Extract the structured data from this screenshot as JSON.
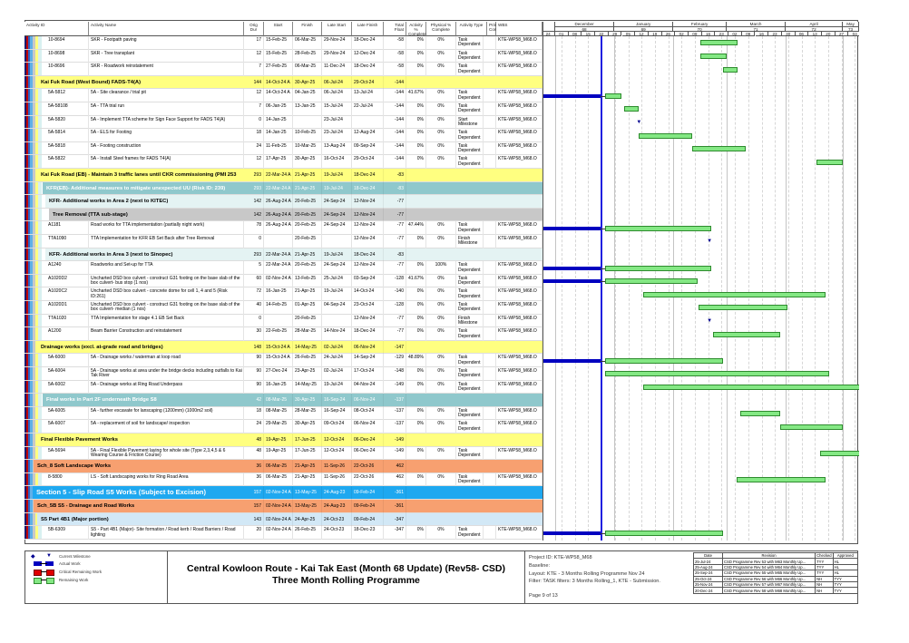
{
  "columns": {
    "id": "Activity ID",
    "name": "Activity Name",
    "orig_dur": "Orig Dur",
    "start": "Start",
    "finish": "Finish",
    "late_start": "Late Start",
    "late_finish": "Late Finish",
    "total_float": "Total Float",
    "act_pct": "Activity % Complete",
    "phys_pct": "Physical % Complete",
    "type": "Activity Type",
    "prim_constr": "Prima Const",
    "wbs": "WBS"
  },
  "timescale": {
    "months": [
      {
        "name": "December",
        "num": "68"
      },
      {
        "name": "January",
        "num": "69"
      },
      {
        "name": "February",
        "num": "70"
      },
      {
        "name": "March",
        "num": "71"
      },
      {
        "name": "April",
        "num": "72"
      },
      {
        "name": "May",
        "num": "73"
      }
    ],
    "weeks": [
      "24",
      "01",
      "08",
      "15",
      "22",
      "29",
      "05",
      "12",
      "19",
      "26",
      "02",
      "09",
      "16",
      "23",
      "02",
      "09",
      "16",
      "23",
      "30",
      "06",
      "13",
      "20",
      "27",
      "04"
    ]
  },
  "rows": [
    {
      "kind": "task",
      "id": "10-8694",
      "name": "SKR - Footpath paving",
      "dur": "17",
      "start": "15-Feb-25",
      "finish": "06-Mar-25",
      "ls": "29-Nov-24",
      "lf": "18-Dec-24",
      "tf": "-58",
      "pct": "0%",
      "phys": "0%",
      "type": "Task Dependent",
      "wbs": "KTE-WP58_M68.O"
    },
    {
      "kind": "task",
      "id": "10-8698",
      "name": "SKR - Tree transplant",
      "dur": "12",
      "start": "15-Feb-25",
      "finish": "28-Feb-25",
      "ls": "29-Nov-24",
      "lf": "12-Dec-24",
      "tf": "-58",
      "pct": "0%",
      "phys": "0%",
      "type": "Task Dependent",
      "wbs": "KTE-WP58_M68.O"
    },
    {
      "kind": "task",
      "id": "10-8696",
      "name": "SKR - Roadwork reinstatement",
      "dur": "7",
      "start": "27-Feb-25",
      "finish": "06-Mar-25",
      "ls": "11-Dec-24",
      "lf": "18-Dec-24",
      "tf": "-58",
      "pct": "0%",
      "phys": "0%",
      "type": "Task Dependent",
      "wbs": "KTE-WP58_M68.O"
    },
    {
      "kind": "group",
      "style": "yellow",
      "level": 3,
      "name": "Kai Fuk Road (West Bound) FADS-T4(A)",
      "dur": "144",
      "start": "14-Oct-24 A",
      "finish": "30-Apr-25",
      "ls": "06-Jul-24",
      "lf": "29-Oct-24",
      "tf": "-144"
    },
    {
      "kind": "task",
      "id": "5A-5812",
      "name": "5A - Site clearance / trial pit",
      "dur": "12",
      "start": "14-Oct-24 A",
      "finish": "04-Jan-25",
      "ls": "06-Jul-24",
      "lf": "13-Jul-24",
      "tf": "-144",
      "pct": "41.67%",
      "phys": "0%",
      "type": "Task Dependent",
      "wbs": "KTE-WP58_M68.O"
    },
    {
      "kind": "task",
      "id": "5A-58108",
      "name": "5A - TTA trial run",
      "dur": "7",
      "start": "06-Jan-25",
      "finish": "13-Jan-25",
      "ls": "15-Jul-24",
      "lf": "22-Jul-24",
      "tf": "-144",
      "pct": "0%",
      "phys": "0%",
      "type": "Task Dependent",
      "wbs": "KTE-WP58_M68.O"
    },
    {
      "kind": "task",
      "id": "5A-5820",
      "name": "5A - Implement TTA scheme for Sign Face Support for FADS T4(A)",
      "dur": "0",
      "start": "14-Jan-25",
      "finish": "",
      "ls": "23-Jul-24",
      "lf": "",
      "tf": "-144",
      "pct": "0%",
      "phys": "0%",
      "type": "Start Milestone",
      "wbs": "KTE-WP58_M68.O"
    },
    {
      "kind": "task",
      "id": "5A-5814",
      "name": "5A - ELS for Footing",
      "dur": "18",
      "start": "14-Jan-25",
      "finish": "10-Feb-25",
      "ls": "23-Jul-24",
      "lf": "12-Aug-24",
      "tf": "-144",
      "pct": "0%",
      "phys": "0%",
      "type": "Task Dependent",
      "wbs": "KTE-WP58_M68.O"
    },
    {
      "kind": "task",
      "id": "5A-5818",
      "name": "5A - Footing construction",
      "dur": "24",
      "start": "11-Feb-25",
      "finish": "10-Mar-25",
      "ls": "13-Aug-24",
      "lf": "09-Sep-24",
      "tf": "-144",
      "pct": "0%",
      "phys": "0%",
      "type": "Task Dependent",
      "wbs": "KTE-WP58_M68.O"
    },
    {
      "kind": "task",
      "id": "5A-5822",
      "name": "5A - Install Steel frames for FADS T4(A)",
      "dur": "12",
      "start": "17-Apr-25",
      "finish": "30-Apr-25",
      "ls": "16-Oct-24",
      "lf": "29-Oct-24",
      "tf": "-144",
      "pct": "0%",
      "phys": "0%",
      "type": "Task Dependent",
      "wbs": "KTE-WP58_M68.O"
    },
    {
      "kind": "group",
      "style": "yellow",
      "level": 3,
      "name": "Kai Fuk Road (EB) - Maintain 3 traffic lanes until CKR commissioning (PMI 253",
      "dur": "293",
      "start": "22-Mar-24 A",
      "finish": "21-Apr-25",
      "ls": "19-Jul-24",
      "lf": "18-Dec-24",
      "tf": "-83"
    },
    {
      "kind": "group",
      "style": "teal",
      "level": 4,
      "name": "KFR(EB)- Additional measures to mitigate unexpected UU (Risk ID: 239)",
      "dur": "293",
      "start": "22-Mar-24 A",
      "finish": "21-Apr-25",
      "ls": "19-Jul-24",
      "lf": "18-Dec-24",
      "tf": "-83"
    },
    {
      "kind": "group",
      "style": "cyan",
      "level": 5,
      "name": "KFR- Additional works in Area 2 (next to KITEC)",
      "dur": "142",
      "start": "26-Aug-24 A",
      "finish": "20-Feb-25",
      "ls": "24-Sep-24",
      "lf": "12-Nov-24",
      "tf": "-77"
    },
    {
      "kind": "group",
      "style": "gray",
      "level": 6,
      "name": "Tree Removal (TTA sub-stage)",
      "dur": "142",
      "start": "26-Aug-24 A",
      "finish": "20-Feb-25",
      "ls": "24-Sep-24",
      "lf": "12-Nov-24",
      "tf": "-77"
    },
    {
      "kind": "task",
      "id": "A1181",
      "name": "Road works for TTA implementation (partially night work)",
      "dur": "78",
      "start": "26-Aug-24 A",
      "finish": "20-Feb-25",
      "ls": "24-Sep-24",
      "lf": "12-Nov-24",
      "tf": "-77",
      "pct": "47.44%",
      "phys": "0%",
      "type": "Task Dependent",
      "wbs": "KTE-WP58_M68.O"
    },
    {
      "kind": "task",
      "id": "TTA1090",
      "name": "TTA Implementation for KFR EB Set Back after Tree Removal",
      "dur": "0",
      "start": "",
      "finish": "20-Feb-25",
      "ls": "",
      "lf": "12-Nov-24",
      "tf": "-77",
      "pct": "0%",
      "phys": "0%",
      "type": "Finish Milestone",
      "wbs": "KTE-WP58_M68.O"
    },
    {
      "kind": "group",
      "style": "cyan",
      "level": 5,
      "name": "KFR- Additional works in Area 3 (next to Sinopec)",
      "dur": "293",
      "start": "22-Mar-24 A",
      "finish": "21-Apr-25",
      "ls": "19-Jul-24",
      "lf": "18-Dec-24",
      "tf": "-83"
    },
    {
      "kind": "task",
      "id": "A1240",
      "name": "Roadworks and Set-up for TTA",
      "dur": "5",
      "start": "22-Mar-24 A",
      "finish": "20-Feb-25",
      "ls": "24-Sep-24",
      "lf": "12-Nov-24",
      "tf": "-77",
      "pct": "0%",
      "phys": "100%",
      "type": "Task Dependent",
      "wbs": "KTE-WP58_M68.O"
    },
    {
      "kind": "task",
      "id": "A1020D2",
      "name": "Uncharted DSD box culvert - construct G31 footing on the base slab of the box culvert- bus stop (1 nos)",
      "dur": "60",
      "start": "02-Nov-24 A",
      "finish": "13-Feb-25",
      "ls": "25-Jul-24",
      "lf": "03-Sep-24",
      "tf": "-128",
      "pct": "41.67%",
      "phys": "0%",
      "type": "Task Dependent",
      "wbs": "KTE-WP58_M68.O"
    },
    {
      "kind": "task",
      "id": "A1020C2",
      "name": "Uncharted DSD box culvert - concrete dome for cell 1, 4 and 5 (Risk ID:261)",
      "dur": "72",
      "start": "16-Jan-25",
      "finish": "21-Apr-25",
      "ls": "19-Jul-24",
      "lf": "14-Oct-24",
      "tf": "-140",
      "pct": "0%",
      "phys": "0%",
      "type": "Task Dependent",
      "wbs": "KTE-WP58_M68.O"
    },
    {
      "kind": "task",
      "id": "A1020D1",
      "name": "Uncharted DSD box culvert - construct G31 footing on the base slab of the box culvert- median (1 nos)",
      "dur": "40",
      "start": "14-Feb-25",
      "finish": "01-Apr-25",
      "ls": "04-Sep-24",
      "lf": "23-Oct-24",
      "tf": "-128",
      "pct": "0%",
      "phys": "0%",
      "type": "Task Dependent",
      "wbs": "KTE-WP58_M68.O"
    },
    {
      "kind": "task",
      "id": "TTA1020",
      "name": "TTA Implementation for stage 4.1 EB Set Back",
      "dur": "0",
      "start": "",
      "finish": "20-Feb-25",
      "ls": "",
      "lf": "12-Nov-24",
      "tf": "-77",
      "pct": "0%",
      "phys": "0%",
      "type": "Finish Milestone",
      "wbs": "KTE-WP58_M68.O"
    },
    {
      "kind": "task",
      "id": "A1200",
      "name": "Beam Barrier Construction and reinstatement",
      "dur": "30",
      "start": "22-Feb-25",
      "finish": "28-Mar-25",
      "ls": "14-Nov-24",
      "lf": "18-Dec-24",
      "tf": "-77",
      "pct": "0%",
      "phys": "0%",
      "type": "Task Dependent",
      "wbs": "KTE-WP58_M68.O"
    },
    {
      "kind": "group",
      "style": "yellow",
      "level": 3,
      "name": "Drainage works (excl. at-grade road and bridges)",
      "dur": "148",
      "start": "15-Oct-24 A",
      "finish": "14-May-25",
      "ls": "02-Jul-24",
      "lf": "06-Nov-24",
      "tf": "-147"
    },
    {
      "kind": "task",
      "id": "5A-6000",
      "name": "5A - Drainage works / waterman at loop road",
      "dur": "90",
      "start": "15-Oct-24 A",
      "finish": "26-Feb-25",
      "ls": "24-Jul-24",
      "lf": "14-Sep-24",
      "tf": "-129",
      "pct": "48.89%",
      "phys": "0%",
      "type": "Task Dependent",
      "wbs": "KTE-WP58_M68.O"
    },
    {
      "kind": "task",
      "id": "5A-6004",
      "name": "5A - Drainage works at area under the bridge decks including outfalls to Kai Tak River",
      "dur": "90",
      "start": "27-Dec-24",
      "finish": "23-Apr-25",
      "ls": "02-Jul-24",
      "lf": "17-Oct-24",
      "tf": "-148",
      "pct": "0%",
      "phys": "0%",
      "type": "Task Dependent",
      "wbs": "KTE-WP58_M68.O"
    },
    {
      "kind": "task",
      "id": "5A-6002",
      "name": "5A - Drainage works at Ring Road Underpass",
      "dur": "90",
      "start": "16-Jan-25",
      "finish": "14-May-25",
      "ls": "19-Jul-24",
      "lf": "04-Nov-24",
      "tf": "-149",
      "pct": "0%",
      "phys": "0%",
      "type": "Task Dependent",
      "wbs": "KTE-WP58_M68.O"
    },
    {
      "kind": "group",
      "style": "teal",
      "level": 4,
      "name": "Final works in Part 2F underneath Bridge S8",
      "dur": "42",
      "start": "08-Mar-25",
      "finish": "30-Apr-25",
      "ls": "16-Sep-24",
      "lf": "06-Nov-24",
      "tf": "-137"
    },
    {
      "kind": "task",
      "id": "5A-6005",
      "name": "5A - further excavate for lanscaping (1200mm)  (1000m2 soil)",
      "dur": "18",
      "start": "08-Mar-25",
      "finish": "28-Mar-25",
      "ls": "16-Sep-24",
      "lf": "08-Oct-24",
      "tf": "-137",
      "pct": "0%",
      "phys": "0%",
      "type": "Task Dependent",
      "wbs": "KTE-WP58_M68.O"
    },
    {
      "kind": "task",
      "id": "5A-6007",
      "name": "5A - replacement of soil for landscape/ inspection",
      "dur": "24",
      "start": "29-Mar-25",
      "finish": "30-Apr-25",
      "ls": "09-Oct-24",
      "lf": "06-Nov-24",
      "tf": "-137",
      "pct": "0%",
      "phys": "0%",
      "type": "Task Dependent",
      "wbs": "KTE-WP58_M68.O"
    },
    {
      "kind": "group",
      "style": "yellow",
      "level": 3,
      "name": "Final Flexible Pavement Works",
      "dur": "48",
      "start": "19-Apr-25",
      "finish": "17-Jun-25",
      "ls": "12-Oct-24",
      "lf": "06-Dec-24",
      "tf": "-149"
    },
    {
      "kind": "task",
      "id": "5A-5694",
      "name": "5A - Final Flexible Pavement laying for whole site (Type 2,3,4,5 & 6 Wearing Course & Friction Course)",
      "dur": "48",
      "start": "19-Apr-25",
      "finish": "17-Jun-25",
      "ls": "12-Oct-24",
      "lf": "06-Dec-24",
      "tf": "-149",
      "pct": "0%",
      "phys": "0%",
      "type": "Task Dependent",
      "wbs": "KTE-WP58_M68.O"
    },
    {
      "kind": "group",
      "style": "orange",
      "level": 2,
      "name": "Sch_8 Soft Landscape Works",
      "dur": "36",
      "start": "06-Mar-25",
      "finish": "21-Apr-25",
      "ls": "11-Sep-26",
      "lf": "22-Oct-26",
      "tf": "462"
    },
    {
      "kind": "task",
      "id": "8-5800",
      "name": "LS - Soft Landscaping works for Ring Road Area",
      "dur": "36",
      "start": "06-Mar-25",
      "finish": "21-Apr-25",
      "ls": "11-Sep-26",
      "lf": "22-Oct-26",
      "tf": "462",
      "pct": "0%",
      "phys": "0%",
      "type": "Task Dependent",
      "wbs": "KTE-WP58_M68.O"
    },
    {
      "kind": "group",
      "style": "blue",
      "level": 1,
      "name": "Section 5 - Slip Road S5 Works (Subject to Excision)",
      "dur": "157",
      "start": "02-Nov-24 A",
      "finish": "13-May-25",
      "ls": "24-Aug-23",
      "lf": "09-Feb-24",
      "tf": "-361"
    },
    {
      "kind": "group",
      "style": "orange",
      "level": 2,
      "name": "Sch_5B S5 - Drainage and Road Works",
      "dur": "157",
      "start": "02-Nov-24 A",
      "finish": "13-May-25",
      "ls": "24-Aug-23",
      "lf": "09-Feb-24",
      "tf": "-361"
    },
    {
      "kind": "group",
      "style": "lblue",
      "level": 3,
      "name": "S5 Part 4B1 (Major portion)",
      "dur": "143",
      "start": "02-Nov-24 A",
      "finish": "24-Apr-25",
      "ls": "24-Oct-23",
      "lf": "09-Feb-24",
      "tf": "-347"
    },
    {
      "kind": "task",
      "id": "5B-6309",
      "name": "S5 - Part 4B1 (Major)- Site formation / Road kerb / Road Barriers / Road lighting",
      "dur": "20",
      "start": "02-Nov-24 A",
      "finish": "26-Feb-25",
      "ls": "24-Oct-23",
      "lf": "18-Dec-23",
      "tf": "-347",
      "pct": "0%",
      "phys": "0%",
      "type": "Task Dependent",
      "wbs": "KTE-WP58_M68.O"
    }
  ],
  "legend": {
    "current_milestone": "Current Milestone",
    "actual_work": "Actual Work",
    "critical_remaining": "Critical Remaining Work",
    "remaining_work": "Remaining Work"
  },
  "footer": {
    "title_line1": "Central Kowloon Route - Kai Tak East (Month 68 Update) (Rev58- CSD)",
    "title_line2": "Three Month Rolling Programme",
    "project_id": "Project ID: KTE-WP58_M68",
    "baseline": "Baseline:",
    "layout": "Layout: KTE - 3 Months Rolling Programme Nov 24",
    "filter": "Filter: TASK filters: 3 Months Rolling_1, KTE - Submission.",
    "page": "Page 9 of 13"
  },
  "revisions": {
    "headers": [
      "Date",
      "Revision",
      "Checked",
      "Approved"
    ],
    "rows": [
      [
        "25-Jul-24",
        "CSD Programme Rev 53 with M63 Monthly Up...",
        "TYY",
        "HL"
      ],
      [
        "25-Aug-24",
        "CSD Programme Rev 54 with M64 Monthly Up...",
        "TYY",
        "HL"
      ],
      [
        "25-Sep-24",
        "CSD Programme Rev 55 with M65 Monthly Up...",
        "TYY",
        "HL"
      ],
      [
        "25-Oct-24",
        "CSD Programme Rev 56 with M66 Monthly Up...",
        "NH",
        "TYY"
      ],
      [
        "25-Nov-24",
        "CSD Programme Rev 57 with M67 Monthly Up...",
        "NH",
        "TYY"
      ],
      [
        "20-Dec-24",
        "CSD Programme Rev 58 with M68 Monthly Up...",
        "NH",
        "TYY"
      ]
    ]
  },
  "colors": {
    "remaining": "#84e884",
    "actual": "#0000c0",
    "critical": "#e00000",
    "data_date_line": "#2020e0"
  }
}
